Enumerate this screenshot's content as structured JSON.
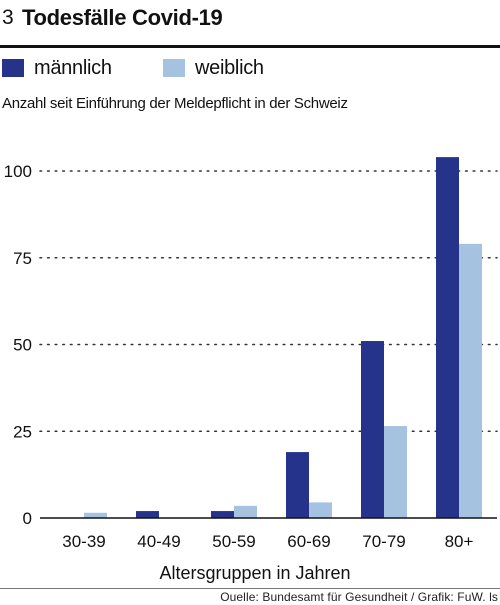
{
  "header": {
    "figure_number": "3",
    "title": "Todesfälle Covid-19"
  },
  "legend": [
    {
      "label": "männlich",
      "color": "#26338a"
    },
    {
      "label": "weiblich",
      "color": "#a5c2e0"
    }
  ],
  "subtitle": "Anzahl  seit Einführung der Meldepflicht in der Schweiz",
  "source": "Ouelle: Bundesamt für Gesundheit / Grafik: FuW. ls",
  "chart_data": {
    "type": "bar",
    "categories": [
      "30-39",
      "40-49",
      "50-59",
      "60-69",
      "70-79",
      "80+"
    ],
    "series": [
      {
        "name": "männlich",
        "color": "#26338a",
        "values": [
          0,
          2,
          2,
          19,
          51,
          104
        ]
      },
      {
        "name": "weiblich",
        "color": "#a5c2e0",
        "values": [
          1.5,
          0,
          3.5,
          4.5,
          26.5,
          79
        ]
      }
    ],
    "yticks": [
      0,
      25,
      50,
      75,
      100
    ],
    "ylim": [
      0,
      108
    ],
    "xlabel": "Altersgruppen in Jahren",
    "ylabel": "",
    "grid": "dotted horizontal"
  }
}
